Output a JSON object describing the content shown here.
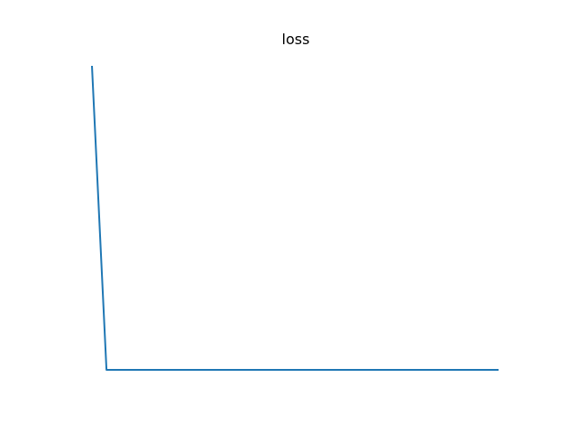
{
  "chart_data": {
    "type": "line",
    "title": "loss",
    "xlabel": "",
    "ylabel": "",
    "axes_visible": false,
    "grid": false,
    "legend": "none",
    "x": [
      0,
      1,
      2,
      3,
      4,
      5,
      6,
      7,
      8,
      9,
      10,
      11,
      12,
      13,
      14,
      15,
      16,
      17,
      18,
      19,
      20,
      21,
      22,
      23,
      24,
      25,
      26,
      27,
      28
    ],
    "series": [
      {
        "color": "#1f77b4",
        "values": [
          1.0,
          0.0,
          0.0,
          0.0,
          0.0,
          0.0,
          0.0,
          0.0,
          0.0,
          0.0,
          0.0,
          0.0,
          0.0,
          0.0,
          0.0,
          0.0,
          0.0,
          0.0,
          0.0,
          0.0,
          0.0,
          0.0,
          0.0,
          0.0,
          0.0,
          0.0,
          0.0,
          0.0,
          0.0
        ]
      }
    ]
  }
}
